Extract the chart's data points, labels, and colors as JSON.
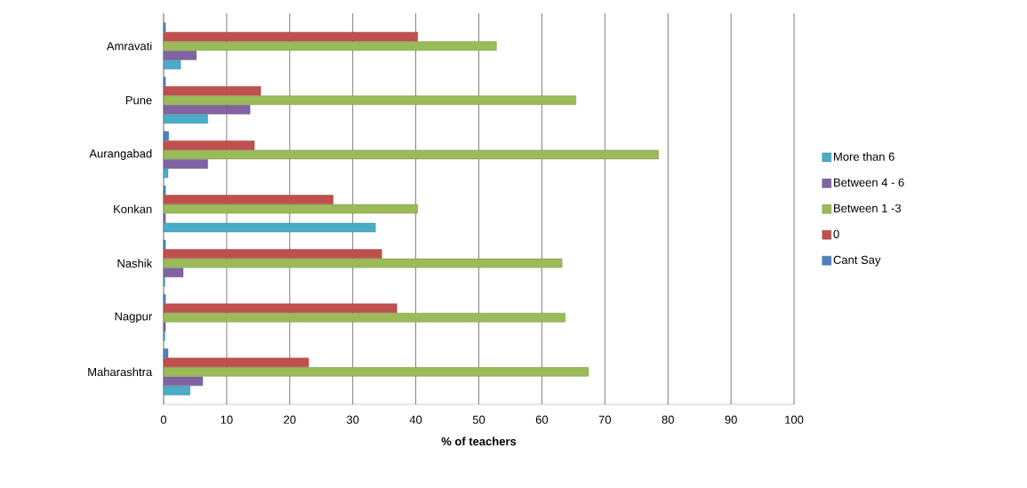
{
  "chart_data": {
    "type": "bar",
    "orientation": "horizontal",
    "xlabel": "% of teachers",
    "categories": [
      "Amravati",
      "Pune",
      "Aurangabad",
      "Konkan",
      "Nashik",
      "Nagpur",
      "Maharashtra"
    ],
    "series": [
      {
        "name": "More than 6",
        "color": "#4bacc6",
        "values": [
          2.7,
          7,
          0.7,
          33.6,
          0.2,
          0.2,
          4.2
        ]
      },
      {
        "name": "Between 4 - 6",
        "color": "#8064a2",
        "values": [
          5.2,
          13.7,
          7,
          0.3,
          3.1,
          0.3,
          6.2
        ]
      },
      {
        "name": "Between 1 -3",
        "color": "#9bbb59",
        "values": [
          52.8,
          65.4,
          78.5,
          40.3,
          63.2,
          63.7,
          67.4
        ]
      },
      {
        "name": "0",
        "color": "#c0504d",
        "values": [
          40.3,
          15.4,
          14.4,
          26.9,
          34.6,
          37,
          23
        ]
      },
      {
        "name": "Cant Say",
        "color": "#4f81bd",
        "values": [
          0.3,
          0.3,
          0.8,
          0.3,
          0.3,
          0.3,
          0.7
        ]
      }
    ],
    "xlim": [
      0,
      100
    ],
    "xticks": [
      0,
      10,
      20,
      30,
      40,
      50,
      60,
      70,
      80,
      90,
      100
    ],
    "grid": "x",
    "legend": "right"
  }
}
